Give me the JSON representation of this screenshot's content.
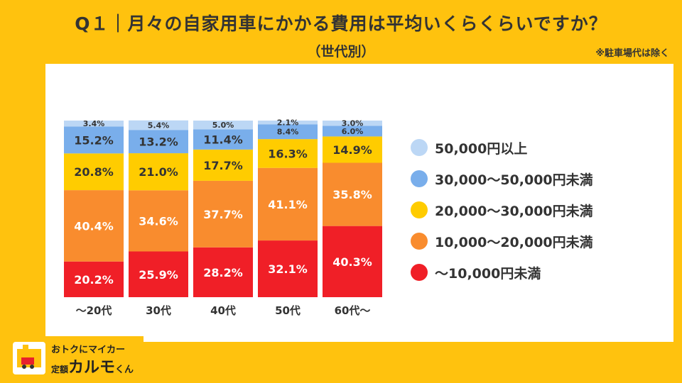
{
  "header": {
    "title": "Q１｜月々の自家用車にかかる費用は平均いくらくらいですか？",
    "subtitle": "（世代別）",
    "note": "※駐車場代は除く"
  },
  "colors": {
    "background": "#FFC20E",
    "panel": "#FFFFFF",
    "seg_50000_plus": "#BCD7F5",
    "seg_30000_50000": "#79AEEB",
    "seg_20000_30000": "#FFCC00",
    "seg_10000_20000": "#F98C2E",
    "seg_under_10000": "#F01F27"
  },
  "logo": {
    "line1": "おトクにマイカー",
    "prefix": "定額",
    "brand": "カルモ",
    "suffix": "くん"
  },
  "chart_data": {
    "type": "bar",
    "stacked": true,
    "categories": [
      "～20代",
      "30代",
      "40代",
      "50代",
      "60代～"
    ],
    "series": [
      {
        "name": "～10,000円未満",
        "color": "#F01F27",
        "values": [
          20.2,
          25.9,
          28.2,
          32.1,
          40.3
        ]
      },
      {
        "name": "10,000～20,000円未満",
        "color": "#F98C2E",
        "values": [
          40.4,
          34.6,
          37.7,
          41.1,
          35.8
        ]
      },
      {
        "name": "20,000～30,000円未満",
        "color": "#FFCC00",
        "values": [
          20.8,
          21.0,
          17.7,
          16.3,
          14.9
        ]
      },
      {
        "name": "30,000～50,000円未満",
        "color": "#79AEEB",
        "values": [
          15.2,
          13.2,
          11.4,
          8.4,
          6.0
        ]
      },
      {
        "name": "50,000円以上",
        "color": "#BCD7F5",
        "values": [
          3.4,
          5.4,
          5.0,
          2.1,
          3.0
        ]
      }
    ],
    "legend_order": [
      "50,000円以上",
      "30,000～50,000円未満",
      "20,000～30,000円未満",
      "10,000～20,000円未満",
      "～10,000円未満"
    ],
    "legend_position": "right",
    "unit": "%",
    "ylim": [
      0,
      100
    ],
    "grid": false
  }
}
